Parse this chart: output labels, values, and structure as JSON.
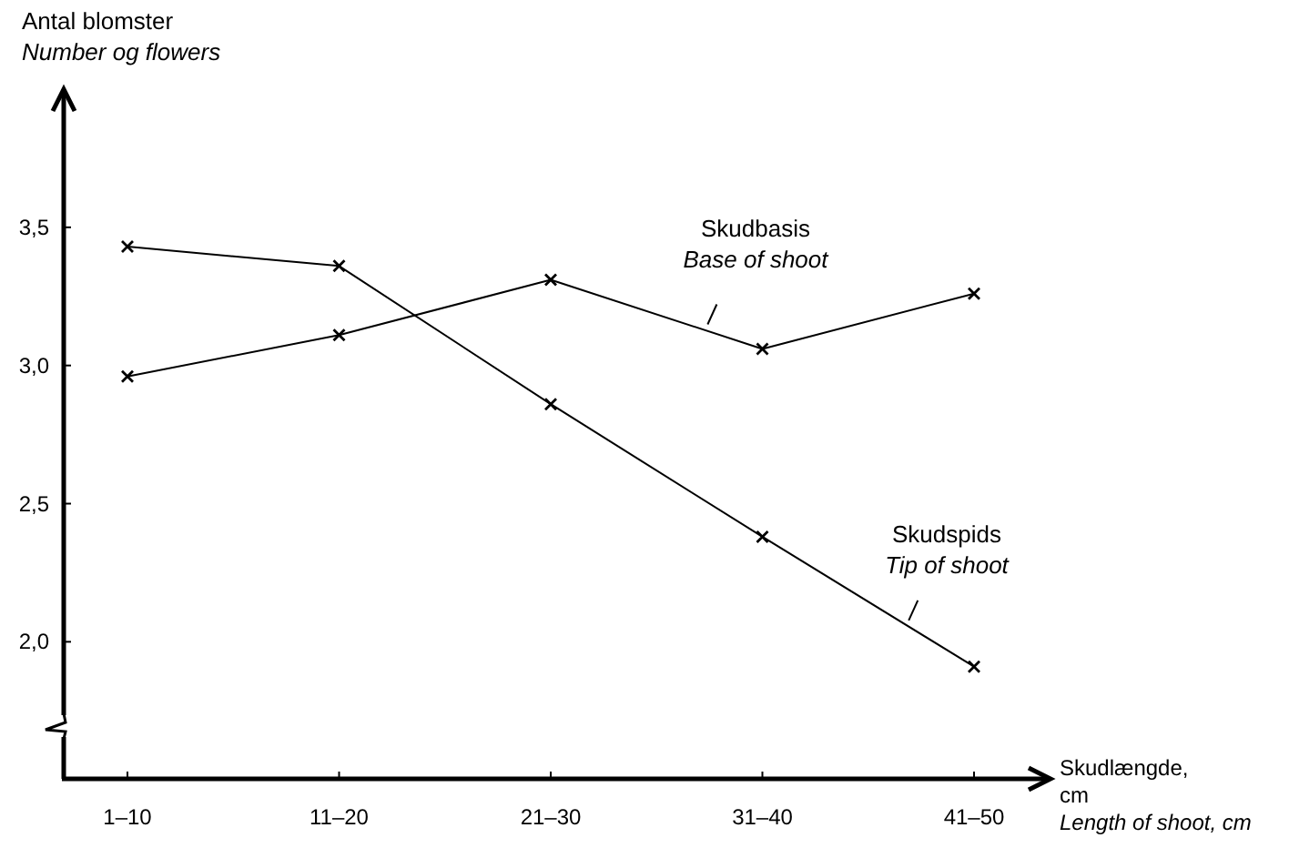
{
  "chart_data": {
    "type": "line",
    "xlabel": "Skudlængde,\ncm\nLength of shoot, cm",
    "ylabel": "Antal blomster\nNumber og flowers",
    "categories": [
      "1–10",
      "11–20",
      "21–30",
      "31–40",
      "41–50"
    ],
    "series": [
      {
        "name": "Skudbasis\nBase of shoot",
        "color": "#000000",
        "values": [
          2.96,
          3.11,
          3.31,
          3.06,
          3.26
        ]
      },
      {
        "name": "Skudspids\nTip of shoot",
        "color": "#000000",
        "values": [
          3.43,
          3.36,
          2.86,
          2.38,
          1.91
        ]
      }
    ],
    "ylim": [
      1.5,
      4.0
    ],
    "yticks": [
      {
        "value": 2,
        "label": "2,0"
      },
      {
        "value": 2.5,
        "label": "2,5"
      },
      {
        "value": 3,
        "label": "3,0"
      },
      {
        "value": 3.5,
        "label": "3,5"
      }
    ],
    "marker": "cross",
    "line_style": "solid",
    "grid": false
  }
}
